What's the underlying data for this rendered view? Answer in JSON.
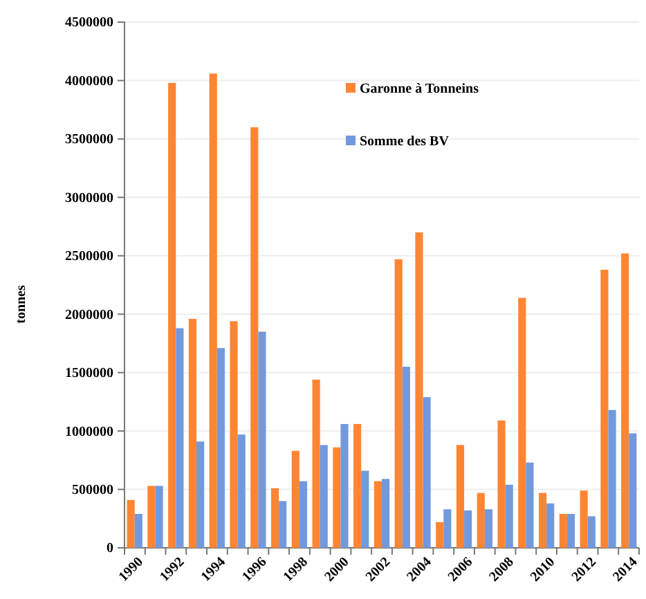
{
  "chart_data": {
    "type": "bar",
    "ylabel": "tonnes",
    "categories": [
      "1990",
      null,
      "1992",
      null,
      "1994",
      null,
      "1996",
      null,
      "1998",
      null,
      "2000",
      null,
      "2002",
      null,
      "2004",
      null,
      "2006",
      null,
      "2008",
      null,
      "2010",
      null,
      "2012",
      null,
      "2014"
    ],
    "series": [
      {
        "name": "Garonne à Tonneins",
        "color": "#ff8533",
        "values": [
          410000,
          530000,
          3980000,
          1960000,
          4060000,
          1940000,
          3600000,
          510000,
          830000,
          1440000,
          860000,
          1060000,
          570000,
          2470000,
          2700000,
          220000,
          880000,
          470000,
          1090000,
          2140000,
          470000,
          290000,
          490000,
          2380000,
          2520000
        ]
      },
      {
        "name": "Somme des BV",
        "color": "#7399dd",
        "values": [
          290000,
          530000,
          1880000,
          910000,
          1710000,
          970000,
          1850000,
          400000,
          570000,
          880000,
          1060000,
          660000,
          590000,
          1550000,
          1290000,
          330000,
          320000,
          330000,
          540000,
          730000,
          380000,
          290000,
          270000,
          1180000,
          980000
        ]
      }
    ],
    "ylim": [
      0,
      4500000
    ],
    "yticks": [
      0,
      500000,
      1000000,
      1500000,
      2000000,
      2500000,
      3000000,
      3500000,
      4000000,
      4500000
    ],
    "grid": "y",
    "legend": "top right"
  }
}
